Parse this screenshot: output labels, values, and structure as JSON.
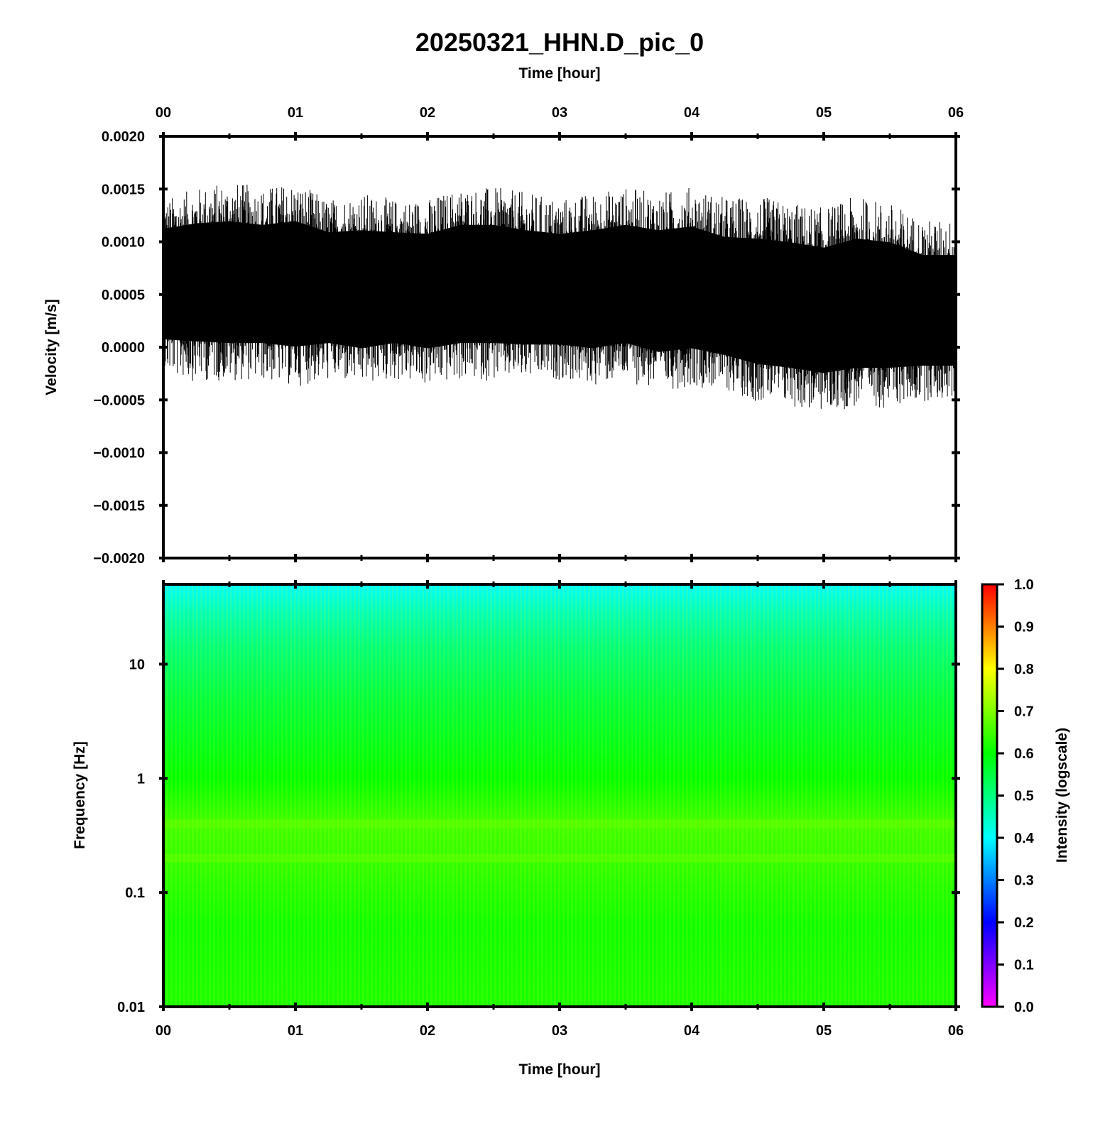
{
  "title": "20250321_HHN.D_pic_0",
  "chart_data": [
    {
      "type": "line",
      "panel": "waveform",
      "title": "20250321_HHN.D_pic_0",
      "xlabel_top": "Time [hour]",
      "ylabel": "Velocity [m/s]",
      "xlim": [
        0,
        6
      ],
      "ylim": [
        -0.002,
        0.002
      ],
      "x_ticks": [
        "00",
        "01",
        "02",
        "03",
        "04",
        "05",
        "06"
      ],
      "y_ticks": [
        "0.0020",
        "0.0015",
        "0.0010",
        "0.0005",
        "0.0000",
        "−0.0005",
        "−0.0010",
        "−0.0015",
        "−0.0020"
      ],
      "series": [
        {
          "color": "#000000",
          "x": [
            0,
            0.25,
            0.5,
            0.75,
            1.0,
            1.25,
            1.5,
            1.75,
            2.0,
            2.25,
            2.5,
            2.75,
            3.0,
            3.25,
            3.5,
            3.75,
            4.0,
            4.25,
            4.5,
            4.75,
            5.0,
            5.25,
            5.5,
            5.75,
            6.0
          ],
          "upper": [
            0.0013,
            0.0014,
            0.00145,
            0.0014,
            0.00145,
            0.0013,
            0.00135,
            0.0013,
            0.0013,
            0.0014,
            0.0014,
            0.00135,
            0.0013,
            0.00135,
            0.0014,
            0.00135,
            0.0014,
            0.0013,
            0.0013,
            0.00125,
            0.0012,
            0.0013,
            0.00125,
            0.0011,
            0.0011
          ],
          "lower": [
            -0.00015,
            -0.0002,
            -0.0002,
            -0.0002,
            -0.00025,
            -0.0002,
            -0.00025,
            -0.0002,
            -0.00025,
            -0.0002,
            -0.0002,
            -0.0002,
            -0.0002,
            -0.00025,
            -0.0002,
            -0.0003,
            -0.00025,
            -0.0003,
            -0.0004,
            -0.00045,
            -0.0005,
            -0.00045,
            -0.00045,
            -0.0004,
            -0.0004
          ],
          "mean": [
            0.0006,
            0.00065,
            0.0006,
            0.0006,
            0.0006,
            0.0006,
            0.00055,
            0.0006,
            0.00055,
            0.0006,
            0.0006,
            0.00055,
            0.00055,
            0.00055,
            0.0006,
            0.00055,
            0.00055,
            0.00045,
            0.0004,
            0.0004,
            0.00035,
            0.0004,
            0.0004,
            0.00035,
            0.00035
          ]
        }
      ]
    },
    {
      "type": "heatmap",
      "panel": "spectrogram",
      "xlabel": "Time [hour]",
      "ylabel": "Frequency [Hz]",
      "xlim": [
        0,
        6
      ],
      "ylim": [
        0.01,
        50
      ],
      "yscale": "log",
      "x_ticks": [
        "00",
        "01",
        "02",
        "03",
        "04",
        "05",
        "06"
      ],
      "y_ticks": [
        "10",
        "1",
        "0.1",
        "0.01"
      ],
      "colorbar": {
        "label": "Intensity (logscale)",
        "range": [
          0,
          1
        ],
        "ticks": [
          "1.0",
          "0.9",
          "0.8",
          "0.7",
          "0.6",
          "0.5",
          "0.4",
          "0.3",
          "0.2",
          "0.1",
          "0.0"
        ],
        "colormap": [
          "#ff00ff",
          "#0000ff",
          "#00ffff",
          "#00ff00",
          "#ffff00",
          "#ff0000"
        ]
      },
      "frequency_profile": [
        {
          "freq": 50,
          "intensity": 0.4
        },
        {
          "freq": 30,
          "intensity": 0.45
        },
        {
          "freq": 15,
          "intensity": 0.5
        },
        {
          "freq": 5,
          "intensity": 0.55
        },
        {
          "freq": 1,
          "intensity": 0.6
        },
        {
          "freq": 0.4,
          "intensity": 0.65
        },
        {
          "freq": 0.2,
          "intensity": 0.64
        },
        {
          "freq": 0.05,
          "intensity": 0.61
        },
        {
          "freq": 0.01,
          "intensity": 0.62
        }
      ]
    }
  ]
}
